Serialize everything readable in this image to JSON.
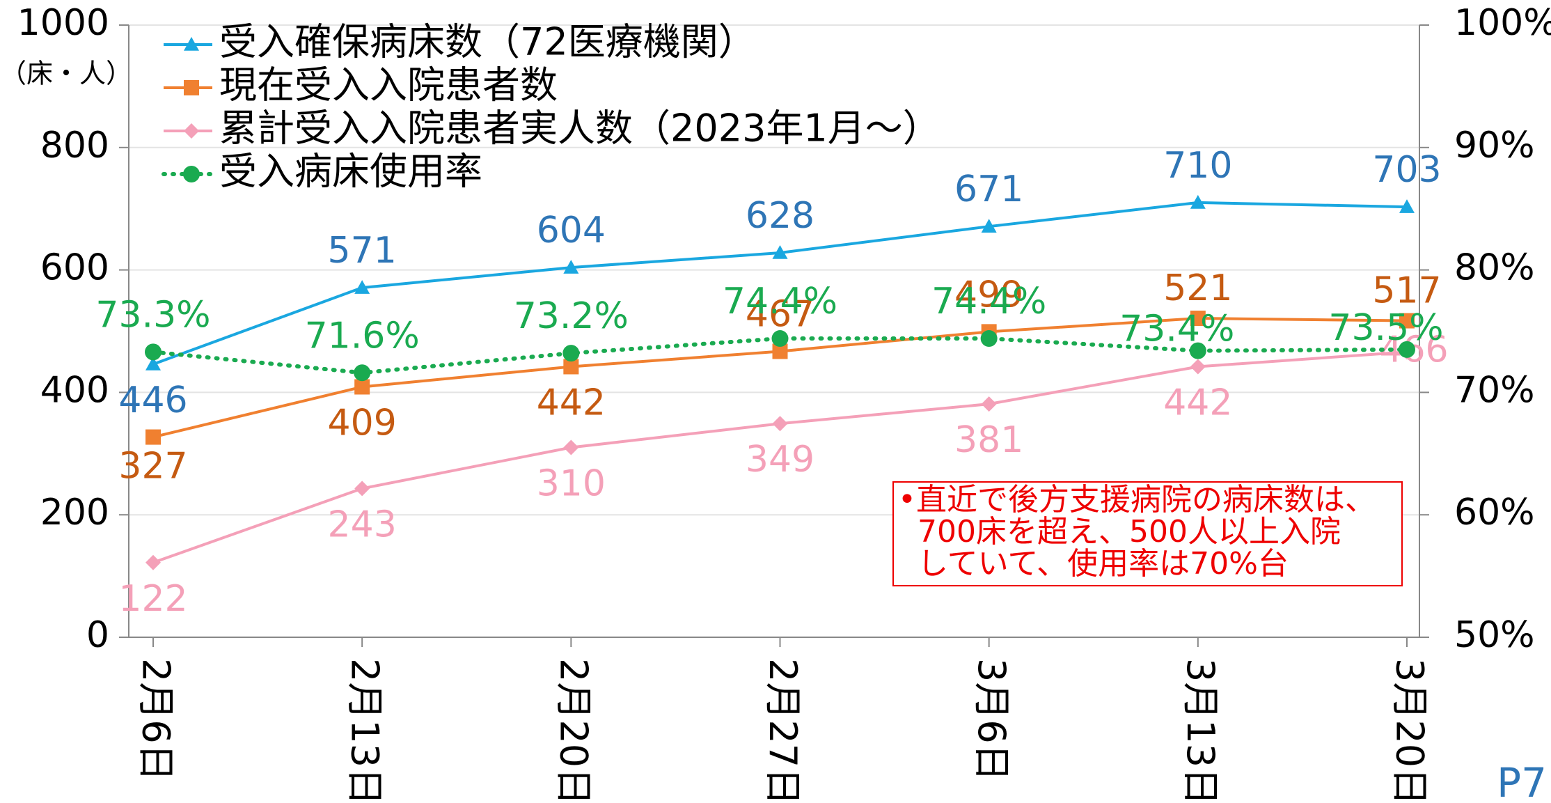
{
  "chart_data": {
    "type": "line",
    "y_unit_label": "（床・人）",
    "categories": [
      "2月6日",
      "2月13日",
      "2月20日",
      "2月27日",
      "3月6日",
      "3月13日",
      "3月20日"
    ],
    "series": [
      {
        "name": "受入確保病床数（72医療機関）",
        "color": "#1aa7e0",
        "label_color": "#2e75b6",
        "marker": "triangle",
        "values": [
          446,
          571,
          604,
          628,
          671,
          710,
          703
        ]
      },
      {
        "name": "現在受入入院患者数",
        "color": "#f08030",
        "label_color": "#c55a11",
        "marker": "square",
        "values": [
          327,
          409,
          442,
          467,
          499,
          521,
          517
        ]
      },
      {
        "name": "累計受入入院患者実人数（2023年1月～）",
        "color": "#f4a0b8",
        "label_color": "#f4a0b8",
        "marker": "diamond",
        "values": [
          122,
          243,
          310,
          349,
          381,
          442,
          466
        ]
      },
      {
        "name": "受入病床使用率",
        "color": "#1aaa50",
        "label_color": "#1aaa50",
        "marker": "circle",
        "dotted": true,
        "axis": "y2",
        "values": [
          73.3,
          71.6,
          73.2,
          74.4,
          74.4,
          73.4,
          73.5
        ],
        "value_labels": [
          "73.3%",
          "71.6%",
          "73.2%",
          "74.4%",
          "74.4%",
          "73.4%",
          "73.5%"
        ]
      }
    ],
    "ylim": [
      0,
      1000
    ],
    "yticks": [
      0,
      200,
      400,
      600,
      800,
      1000
    ],
    "y2lim": [
      50,
      100
    ],
    "y2ticks": [
      {
        "value": 50,
        "label": "50%"
      },
      {
        "value": 60,
        "label": "60%"
      },
      {
        "value": 70,
        "label": "70%"
      },
      {
        "value": 80,
        "label": "80%"
      },
      {
        "value": 90,
        "label": "90%"
      },
      {
        "value": 100,
        "label": "100%"
      }
    ],
    "grid": true,
    "legend": "top-left",
    "annotation": [
      "•直近で後方支援病院の病床数は、",
      "700床を超え、500人以上入院",
      "していて、使用率は70%台"
    ],
    "page_number": "P7"
  }
}
